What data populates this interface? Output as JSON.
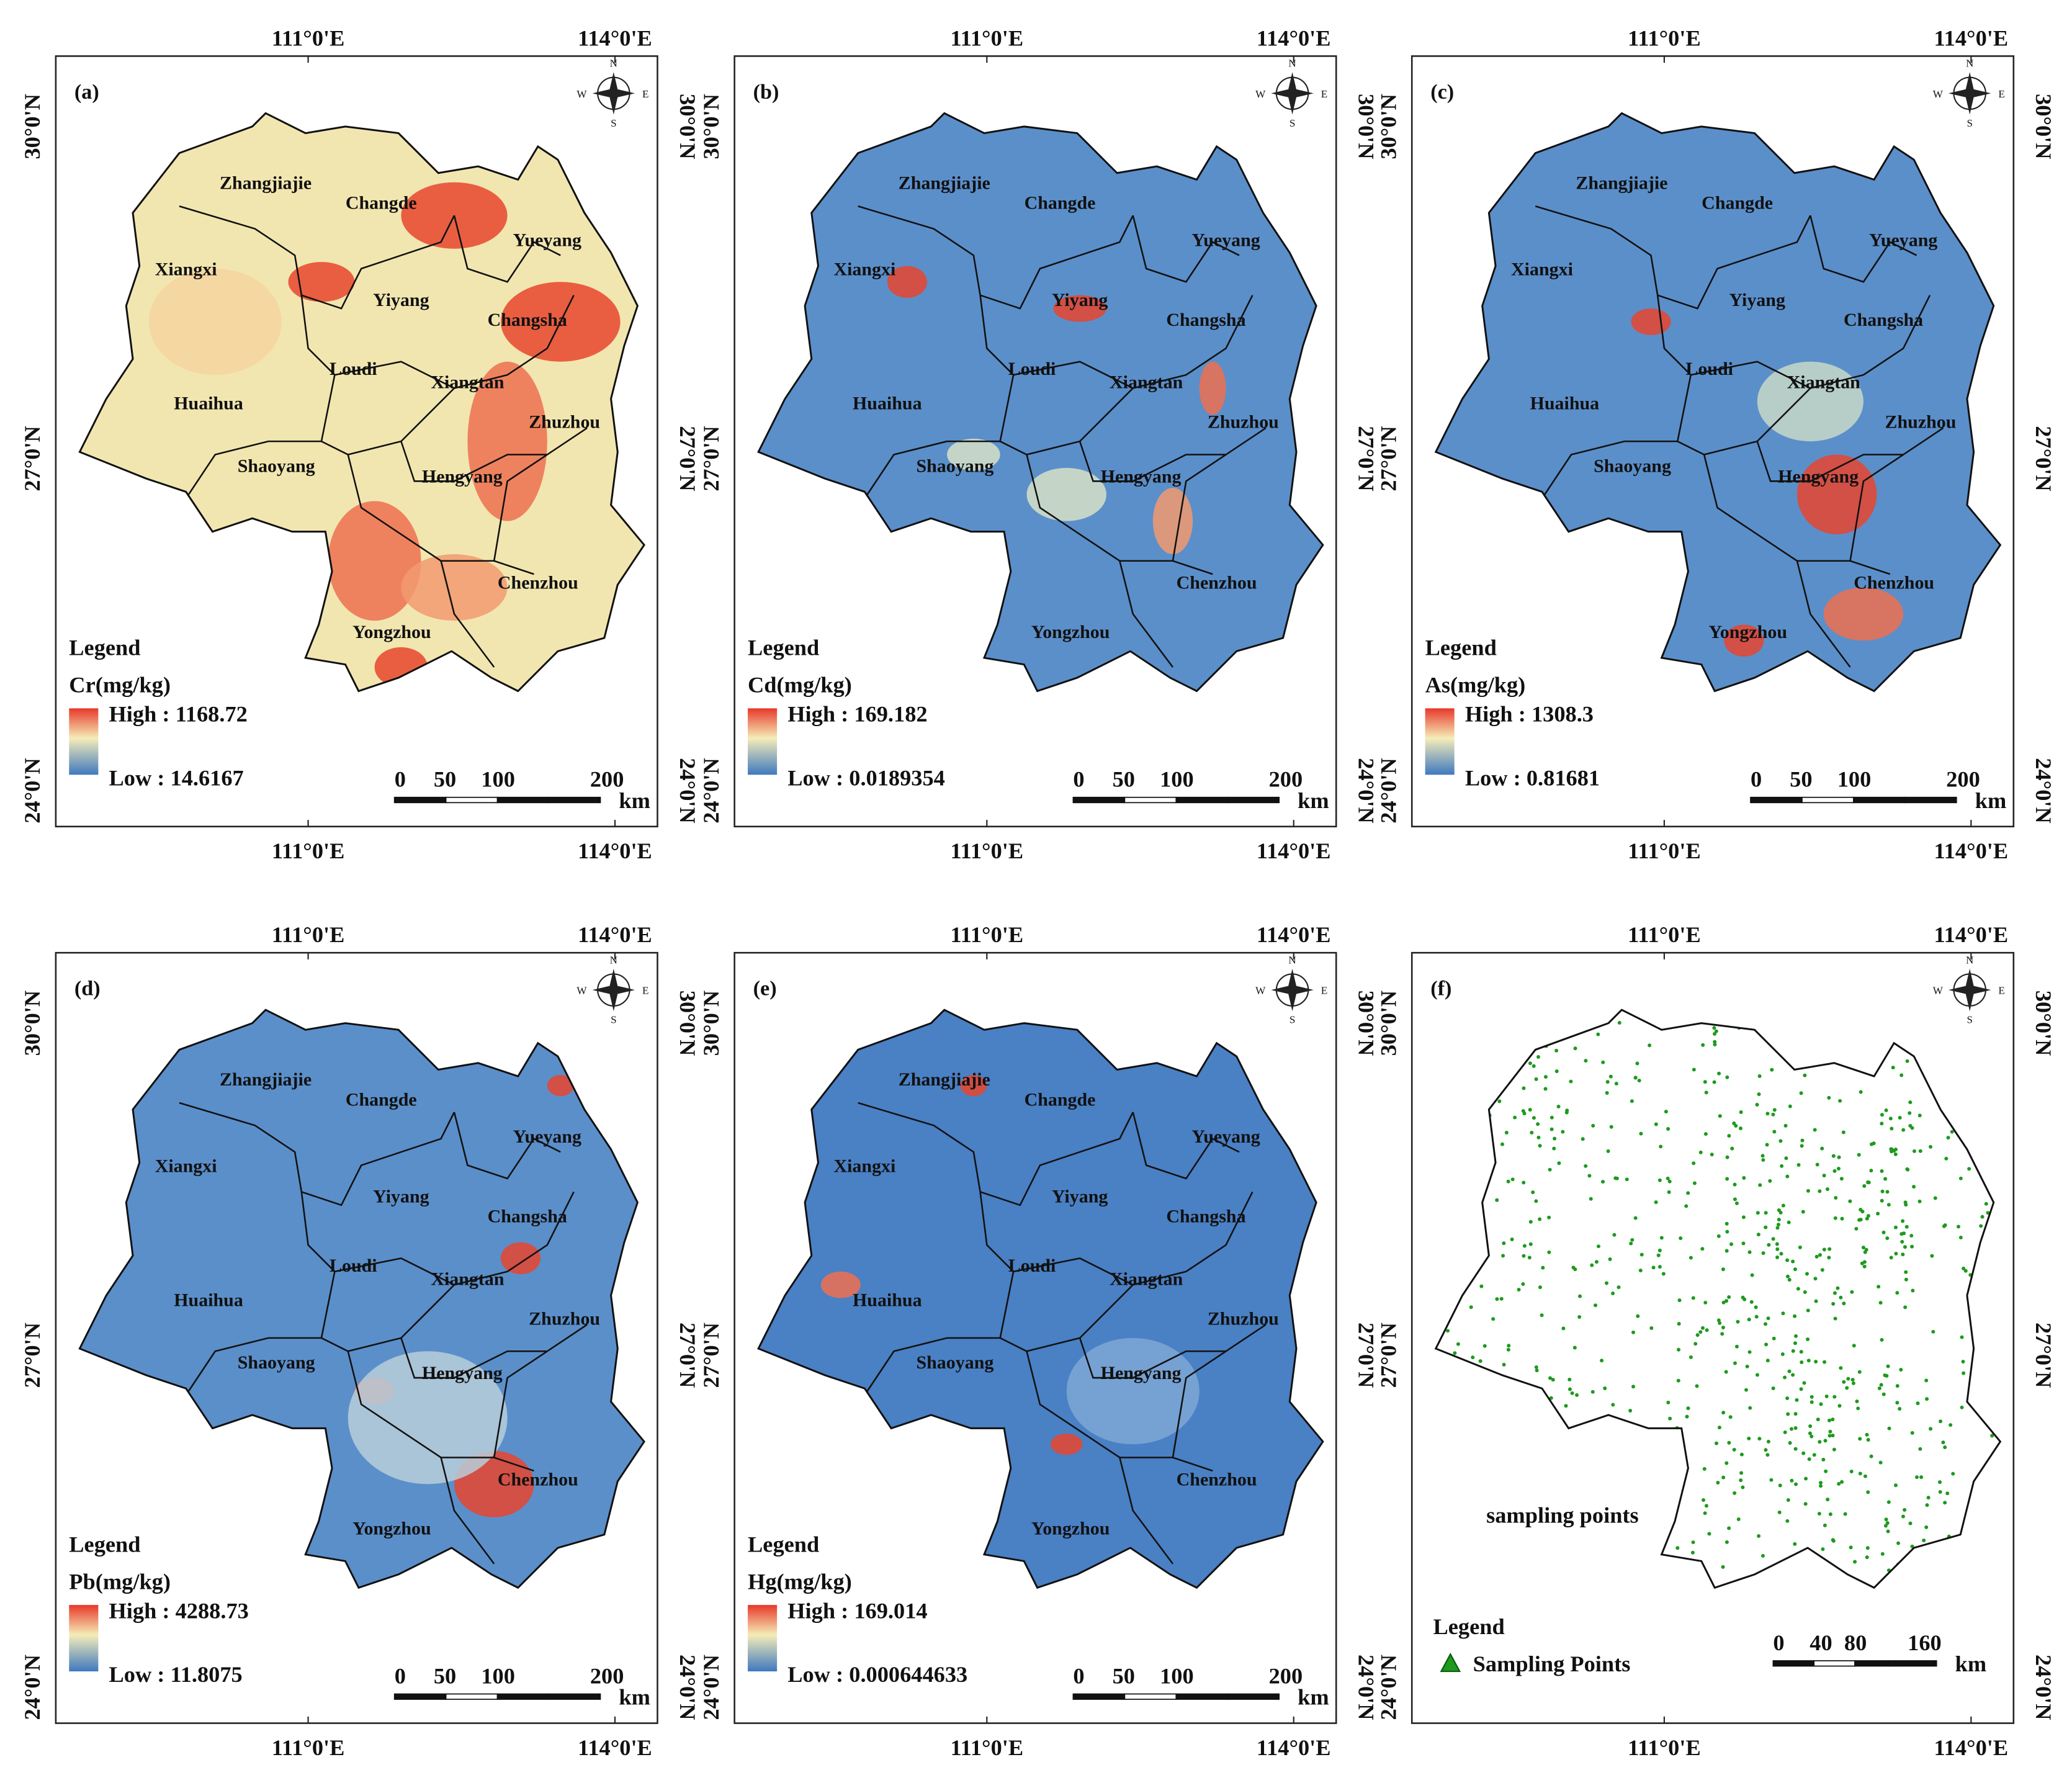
{
  "panels": [
    {
      "label": "(a)",
      "legend_title": "Legend",
      "variable": "Cr(mg/kg)",
      "high": "High : 1168.72",
      "low": "Low : 14.6167",
      "scale": [
        "0",
        "50",
        "100",
        "200"
      ],
      "scale_unit": "km"
    },
    {
      "label": "(b)",
      "legend_title": "Legend",
      "variable": "Cd(mg/kg)",
      "high": "High : 169.182",
      "low": "Low : 0.0189354",
      "scale": [
        "0",
        "50",
        "100",
        "200"
      ],
      "scale_unit": "km"
    },
    {
      "label": "(c)",
      "legend_title": "Legend",
      "variable": "As(mg/kg)",
      "high": "High : 1308.3",
      "low": "Low : 0.81681",
      "scale": [
        "0",
        "50",
        "100",
        "200"
      ],
      "scale_unit": "km"
    },
    {
      "label": "(d)",
      "legend_title": "Legend",
      "variable": "Pb(mg/kg)",
      "high": "High : 4288.73",
      "low": "Low : 11.8075",
      "scale": [
        "0",
        "50",
        "100",
        "200"
      ],
      "scale_unit": "km"
    },
    {
      "label": "(e)",
      "legend_title": "Legend",
      "variable": "Hg(mg/kg)",
      "high": "High : 169.014",
      "low": "Low : 0.000644633",
      "scale": [
        "0",
        "50",
        "100",
        "200"
      ],
      "scale_unit": "km"
    },
    {
      "label": "(f)",
      "legend_title": "Legend",
      "legend_item": "Sampling Points",
      "annotation": "sampling points",
      "scale": [
        "0",
        "40",
        "80",
        "160"
      ],
      "scale_unit": "km"
    }
  ],
  "lon_labels": [
    "111°0'E",
    "114°0'E"
  ],
  "lat_labels": [
    "30°0'N",
    "27°0'N",
    "24°0'N"
  ],
  "compass": [
    "N",
    "S",
    "W",
    "E"
  ],
  "regions": [
    "Zhangjiajie",
    "Changde",
    "Xiangxi",
    "Yueyang",
    "Yiyang",
    "Changsha",
    "Loudi",
    "Xiangtan",
    "Huaihua",
    "Zhuzhou",
    "Shaoyang",
    "Hengyang",
    "Chenzhou",
    "Yongzhou"
  ]
}
